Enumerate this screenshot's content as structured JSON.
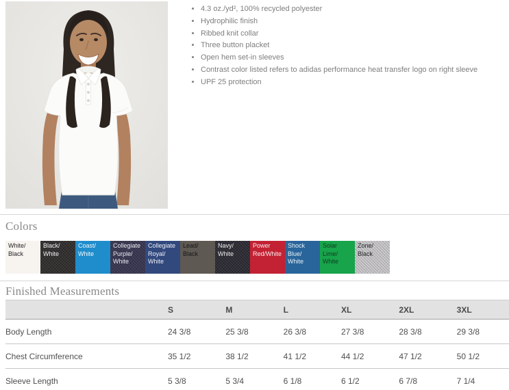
{
  "features": {
    "items": [
      "4.3 oz./yd², 100% recycled polyester",
      "Hydrophilic finish",
      "Ribbed knit collar",
      "Three button placket",
      "Open hem set-in sleeves",
      "Contrast color listed refers to adidas performance heat transfer logo on right sleeve",
      "UPF 25 protection"
    ]
  },
  "colors_section": {
    "title": "Colors",
    "swatches": [
      {
        "label": "White/ Black",
        "bg": "#f7f4f0",
        "text": "#1f1f1f",
        "texture": "none"
      },
      {
        "label": "Black/ White",
        "bg": "#292726",
        "text": "#f2f2f2",
        "texture": "weave"
      },
      {
        "label": "Coast/ White",
        "bg": "#1f8dcb",
        "text": "#f5fafd",
        "texture": "none"
      },
      {
        "label": "Collegiate Purple/ White",
        "bg": "#302e48",
        "text": "#e9e9ef",
        "texture": "weave"
      },
      {
        "label": "Collegiate Royal/ White",
        "bg": "#32497e",
        "text": "#eef1f7",
        "texture": "none"
      },
      {
        "label": "Lead/ Black",
        "bg": "#5e5953",
        "text": "#161616",
        "texture": "none"
      },
      {
        "label": "Navy/ White",
        "bg": "#25242c",
        "text": "#eeeeee",
        "texture": "weave"
      },
      {
        "label": "Power Red/White",
        "bg": "#c22233",
        "text": "#fdeef0",
        "texture": "none"
      },
      {
        "label": "Shock Blue/ White",
        "bg": "#29659b",
        "text": "#eaf2f9",
        "texture": "none"
      },
      {
        "label": "Solar Lime/ White",
        "bg": "#17a44a",
        "text": "#113a21",
        "texture": "none"
      },
      {
        "label": "Zone/ Black",
        "bg": "#b7b5b8",
        "text": "#26262a",
        "texture": "hatch"
      }
    ]
  },
  "measurements": {
    "title": "Finished Measurements",
    "columns": [
      "S",
      "M",
      "L",
      "XL",
      "2XL",
      "3XL"
    ],
    "rows": [
      {
        "label": "Body Length",
        "values": [
          "24 3/8",
          "25 3/8",
          "26 3/8",
          "27 3/8",
          "28 3/8",
          "29 3/8"
        ]
      },
      {
        "label": "Chest Circumference",
        "values": [
          "35 1/2",
          "38 1/2",
          "41 1/2",
          "44 1/2",
          "47 1/2",
          "50 1/2"
        ]
      },
      {
        "label": "Sleeve Length",
        "values": [
          "5 3/8",
          "5 3/4",
          "6 1/8",
          "6 1/2",
          "6 7/8",
          "7 1/4"
        ]
      }
    ]
  }
}
